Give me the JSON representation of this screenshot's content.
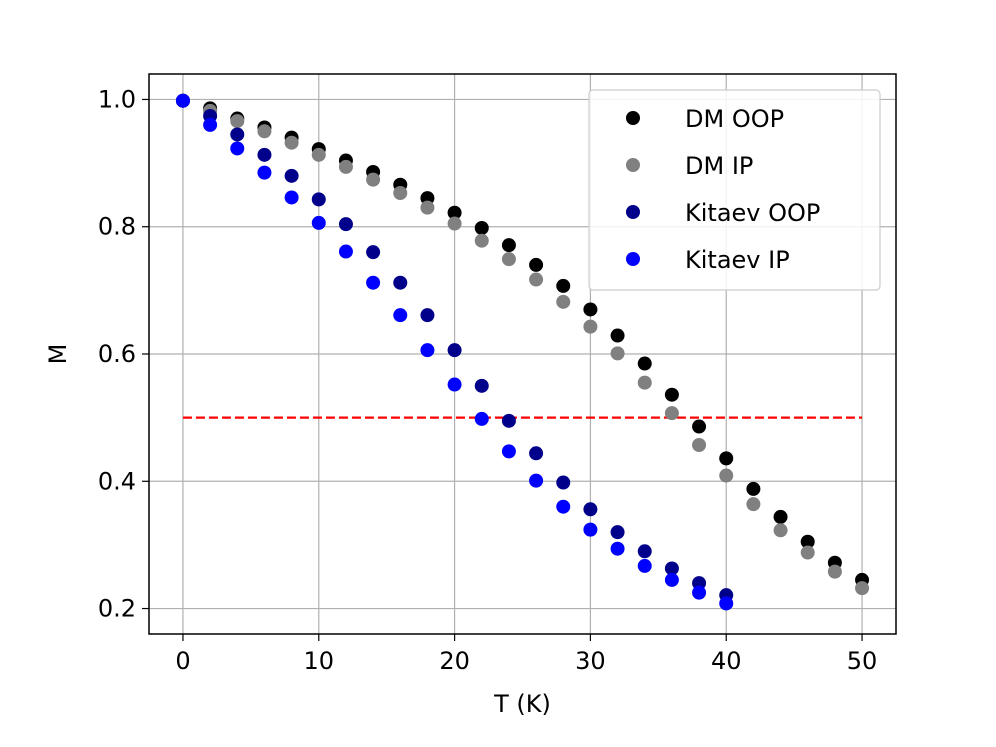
{
  "chart_data": {
    "type": "scatter",
    "title": "",
    "xlabel": "T (K)",
    "ylabel": "M",
    "xlim": [
      -2.5,
      52.5
    ],
    "ylim": [
      0.16,
      1.04
    ],
    "xticks": [
      0,
      10,
      20,
      30,
      40,
      50
    ],
    "yticks": [
      0.2,
      0.4,
      0.6,
      0.8,
      1.0
    ],
    "xtick_labels": [
      "0",
      "10",
      "20",
      "30",
      "40",
      "50"
    ],
    "ytick_labels": [
      "0.2",
      "0.4",
      "0.6",
      "0.8",
      "1.0"
    ],
    "grid": true,
    "legend_position": "top-right",
    "series": [
      {
        "name": "DM OOP",
        "color": "#000000",
        "x": [
          0,
          2,
          4,
          6,
          8,
          10,
          12,
          14,
          16,
          18,
          20,
          22,
          24,
          26,
          28,
          30,
          32,
          34,
          36,
          38,
          40,
          42,
          44,
          46,
          48,
          50
        ],
        "y": [
          0.998,
          0.986,
          0.97,
          0.956,
          0.94,
          0.922,
          0.904,
          0.886,
          0.866,
          0.845,
          0.822,
          0.798,
          0.771,
          0.74,
          0.707,
          0.67,
          0.629,
          0.585,
          0.536,
          0.486,
          0.436,
          0.388,
          0.344,
          0.305,
          0.272,
          0.245
        ]
      },
      {
        "name": "DM IP",
        "color": "#808080",
        "x": [
          0,
          2,
          4,
          6,
          8,
          10,
          12,
          14,
          16,
          18,
          20,
          22,
          24,
          26,
          28,
          30,
          32,
          34,
          36,
          38,
          40,
          42,
          44,
          46,
          48,
          50
        ],
        "y": [
          0.998,
          0.982,
          0.966,
          0.95,
          0.932,
          0.913,
          0.894,
          0.874,
          0.853,
          0.83,
          0.805,
          0.778,
          0.749,
          0.717,
          0.682,
          0.643,
          0.601,
          0.555,
          0.507,
          0.457,
          0.409,
          0.364,
          0.323,
          0.288,
          0.258,
          0.232
        ]
      },
      {
        "name": "Kitaev OOP",
        "color": "#00008b",
        "x": [
          0,
          2,
          4,
          6,
          8,
          10,
          12,
          14,
          16,
          18,
          20,
          22,
          24,
          26,
          28,
          30,
          32,
          34,
          36,
          38,
          40
        ],
        "y": [
          0.998,
          0.974,
          0.945,
          0.913,
          0.88,
          0.843,
          0.804,
          0.76,
          0.712,
          0.661,
          0.606,
          0.55,
          0.495,
          0.444,
          0.398,
          0.356,
          0.32,
          0.29,
          0.263,
          0.24,
          0.221
        ]
      },
      {
        "name": "Kitaev IP",
        "color": "#0000ff",
        "x": [
          0,
          2,
          4,
          6,
          8,
          10,
          12,
          14,
          16,
          18,
          20,
          22,
          24,
          26,
          28,
          30,
          32,
          34,
          36,
          38,
          40
        ],
        "y": [
          0.998,
          0.96,
          0.923,
          0.885,
          0.846,
          0.806,
          0.761,
          0.712,
          0.661,
          0.606,
          0.552,
          0.498,
          0.447,
          0.401,
          0.36,
          0.324,
          0.294,
          0.267,
          0.245,
          0.225,
          0.208
        ]
      }
    ],
    "reference_line": {
      "type": "hline",
      "y": 0.5,
      "x_range": [
        0,
        50
      ],
      "color": "#ff0000",
      "style": "dashed"
    }
  }
}
